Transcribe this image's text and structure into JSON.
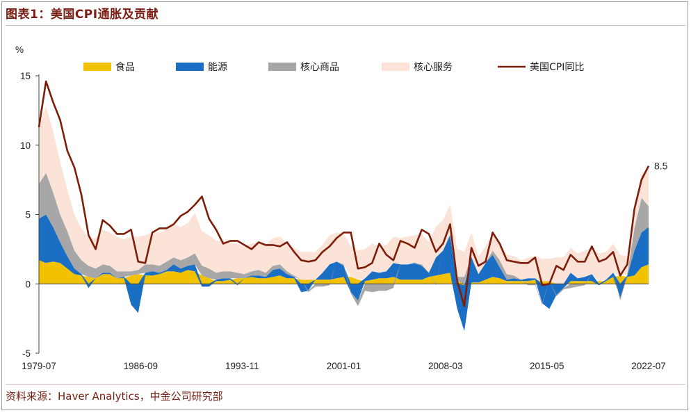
{
  "header": {
    "title": "图表1：美国CPI通胀及贡献"
  },
  "footer": {
    "source": "资料来源：Haver Analytics，中金公司研究部"
  },
  "chart_data": {
    "type": "area",
    "title": "图表1：美国CPI通胀及贡献",
    "ylabel": "%",
    "xlabel": "",
    "ylim": [
      -5,
      15
    ],
    "yticks": [
      15,
      10,
      5,
      0,
      -5
    ],
    "x_start": 1979.5,
    "x_end": 2022.5,
    "xticks": [
      {
        "label": "1979-07",
        "year": 1979.5
      },
      {
        "label": "1986-09",
        "year": 1986.67
      },
      {
        "label": "1993-11",
        "year": 1993.83
      },
      {
        "label": "2001-01",
        "year": 2001.0
      },
      {
        "label": "2008-03",
        "year": 2008.17
      },
      {
        "label": "2015-05",
        "year": 2015.33
      },
      {
        "label": "2022-07",
        "year": 2022.5
      }
    ],
    "legend": {
      "position": "top",
      "entries": [
        {
          "name": "食品",
          "color": "#f2c200",
          "kind": "area"
        },
        {
          "name": "能源",
          "color": "#1a6fc4",
          "kind": "area"
        },
        {
          "name": "核心商品",
          "color": "#a7a7a7",
          "kind": "area"
        },
        {
          "name": "核心服务",
          "color": "#fbe3d8",
          "kind": "area"
        },
        {
          "name": "美国CPI同比",
          "color": "#7d1d0a",
          "kind": "line"
        }
      ]
    },
    "annotation": {
      "text": "8.5",
      "year": 2022.5,
      "value": 8.5
    },
    "x": [
      1979.5,
      1980.0,
      1980.5,
      1981.0,
      1981.5,
      1982.0,
      1982.5,
      1983.0,
      1983.5,
      1984.0,
      1984.5,
      1985.0,
      1985.5,
      1986.0,
      1986.5,
      1987.0,
      1987.5,
      1988.0,
      1988.5,
      1989.0,
      1989.5,
      1990.0,
      1990.5,
      1991.0,
      1991.5,
      1992.0,
      1992.5,
      1993.0,
      1993.5,
      1994.0,
      1994.5,
      1995.0,
      1995.5,
      1996.0,
      1996.5,
      1997.0,
      1997.5,
      1998.0,
      1998.5,
      1999.0,
      1999.5,
      2000.0,
      2000.5,
      2001.0,
      2001.5,
      2002.0,
      2002.5,
      2003.0,
      2003.5,
      2004.0,
      2004.5,
      2005.0,
      2005.5,
      2006.0,
      2006.5,
      2007.0,
      2007.5,
      2008.0,
      2008.5,
      2009.0,
      2009.5,
      2010.0,
      2010.5,
      2011.0,
      2011.5,
      2012.0,
      2012.5,
      2013.0,
      2013.5,
      2014.0,
      2014.5,
      2015.0,
      2015.5,
      2016.0,
      2016.5,
      2017.0,
      2017.5,
      2018.0,
      2018.5,
      2019.0,
      2019.5,
      2020.0,
      2020.5,
      2021.0,
      2021.5,
      2022.0,
      2022.5
    ],
    "series": [
      {
        "name": "食品",
        "values": [
          1.7,
          1.5,
          1.6,
          1.5,
          1.1,
          0.7,
          0.6,
          0.5,
          0.4,
          0.7,
          0.7,
          0.4,
          0.4,
          0.6,
          0.7,
          0.6,
          0.6,
          0.7,
          0.9,
          0.9,
          0.8,
          1.0,
          0.9,
          0.6,
          0.4,
          0.2,
          0.2,
          0.3,
          0.4,
          0.4,
          0.5,
          0.4,
          0.4,
          0.5,
          0.6,
          0.4,
          0.4,
          0.3,
          0.3,
          0.3,
          0.3,
          0.3,
          0.4,
          0.5,
          0.5,
          0.3,
          0.2,
          0.3,
          0.4,
          0.4,
          0.5,
          0.3,
          0.3,
          0.3,
          0.3,
          0.5,
          0.6,
          0.7,
          0.8,
          0.2,
          -0.1,
          0.1,
          0.1,
          0.3,
          0.5,
          0.4,
          0.2,
          0.2,
          0.2,
          0.2,
          0.3,
          0.2,
          0.2,
          0.0,
          0.0,
          0.2,
          0.2,
          0.2,
          0.2,
          0.2,
          0.2,
          0.5,
          0.6,
          0.5,
          0.6,
          1.2,
          1.4
        ]
      },
      {
        "name": "能源",
        "values": [
          3.0,
          3.5,
          2.5,
          1.5,
          0.9,
          0.4,
          0.1,
          -0.3,
          0.0,
          0.1,
          0.1,
          0.0,
          0.1,
          -1.5,
          -2.1,
          0.2,
          0.3,
          0.1,
          0.1,
          0.5,
          0.3,
          0.3,
          0.5,
          -0.2,
          -0.2,
          0.1,
          0.2,
          0.1,
          -0.1,
          0.0,
          0.1,
          0.2,
          0.1,
          0.5,
          0.5,
          0.3,
          0.1,
          -0.6,
          -0.5,
          0.0,
          0.5,
          1.1,
          1.2,
          0.8,
          -0.6,
          -1.2,
          0.2,
          0.6,
          0.4,
          0.5,
          1.0,
          1.1,
          1.1,
          1.2,
          1.0,
          0.3,
          1.3,
          1.7,
          2.7,
          -1.8,
          -3.3,
          1.8,
          0.6,
          1.2,
          1.6,
          0.8,
          0.1,
          0.2,
          0.1,
          0.2,
          0.1,
          -1.4,
          -1.8,
          -0.8,
          -0.3,
          0.6,
          0.2,
          0.3,
          0.5,
          -0.1,
          0.1,
          0.3,
          -1.0,
          0.1,
          1.8,
          2.5,
          2.7
        ]
      },
      {
        "name": "核心商品",
        "values": [
          2.5,
          3.0,
          2.5,
          2.0,
          1.8,
          1.3,
          1.0,
          0.8,
          0.7,
          0.6,
          0.5,
          0.5,
          0.4,
          0.3,
          0.3,
          0.6,
          0.5,
          0.5,
          0.6,
          0.5,
          0.6,
          0.6,
          0.8,
          0.7,
          0.7,
          0.5,
          0.5,
          0.5,
          0.4,
          0.3,
          0.3,
          0.4,
          0.3,
          0.3,
          0.3,
          0.2,
          0.1,
          0.0,
          -0.1,
          -0.2,
          -0.2,
          -0.1,
          0.0,
          0.1,
          -0.1,
          -0.4,
          -0.5,
          -0.6,
          -0.5,
          -0.5,
          -0.3,
          0.0,
          0.0,
          0.0,
          0.1,
          0.0,
          -0.1,
          0.0,
          0.1,
          0.3,
          0.5,
          0.1,
          0.0,
          0.0,
          0.3,
          0.5,
          0.4,
          0.2,
          0.0,
          -0.1,
          -0.1,
          -0.1,
          0.0,
          -0.1,
          -0.1,
          -0.3,
          -0.2,
          -0.1,
          0.0,
          0.0,
          0.0,
          0.0,
          -0.2,
          0.1,
          1.6,
          2.5,
          1.5
        ]
      },
      {
        "name": "核心服务",
        "values": [
          4.2,
          4.8,
          4.4,
          3.8,
          3.0,
          2.6,
          2.3,
          2.0,
          2.2,
          2.5,
          2.4,
          2.5,
          2.3,
          2.5,
          2.4,
          2.1,
          2.3,
          2.4,
          2.3,
          2.4,
          2.4,
          2.5,
          2.9,
          2.5,
          2.4,
          2.3,
          2.2,
          2.1,
          2.1,
          2.0,
          2.0,
          2.0,
          2.0,
          2.0,
          2.0,
          2.0,
          2.0,
          2.0,
          2.0,
          2.0,
          2.0,
          2.1,
          2.1,
          2.2,
          2.2,
          2.1,
          2.1,
          2.0,
          1.9,
          1.9,
          1.9,
          1.9,
          2.0,
          2.0,
          2.2,
          2.2,
          2.2,
          2.2,
          2.1,
          2.0,
          1.8,
          1.7,
          1.3,
          1.2,
          1.2,
          1.3,
          1.4,
          1.4,
          1.4,
          1.5,
          1.6,
          1.6,
          1.6,
          1.9,
          1.9,
          1.8,
          1.8,
          1.9,
          1.9,
          2.0,
          2.0,
          2.1,
          1.5,
          1.3,
          1.4,
          1.7,
          2.9
        ]
      },
      {
        "name": "美国CPI同比",
        "values": [
          11.3,
          14.6,
          13.1,
          11.8,
          9.6,
          8.4,
          6.4,
          3.5,
          2.5,
          4.6,
          4.2,
          3.6,
          3.6,
          3.9,
          1.6,
          1.5,
          3.7,
          4.0,
          4.0,
          4.3,
          4.9,
          5.2,
          5.7,
          6.3,
          4.7,
          3.9,
          2.9,
          3.1,
          3.1,
          2.8,
          2.5,
          3.0,
          2.8,
          2.8,
          2.7,
          3.0,
          2.3,
          1.7,
          1.6,
          1.7,
          2.3,
          2.7,
          3.3,
          3.7,
          3.7,
          1.1,
          1.2,
          1.5,
          2.9,
          2.1,
          1.7,
          3.1,
          2.9,
          2.6,
          3.9,
          3.6,
          2.3,
          2.9,
          4.3,
          0.2,
          -1.6,
          2.6,
          1.3,
          1.6,
          3.7,
          2.9,
          1.7,
          1.6,
          1.5,
          1.5,
          1.9,
          -0.1,
          0.0,
          1.3,
          1.0,
          2.1,
          1.6,
          1.6,
          2.7,
          1.6,
          1.8,
          2.3,
          0.6,
          1.4,
          5.4,
          7.5,
          8.5
        ]
      }
    ]
  }
}
